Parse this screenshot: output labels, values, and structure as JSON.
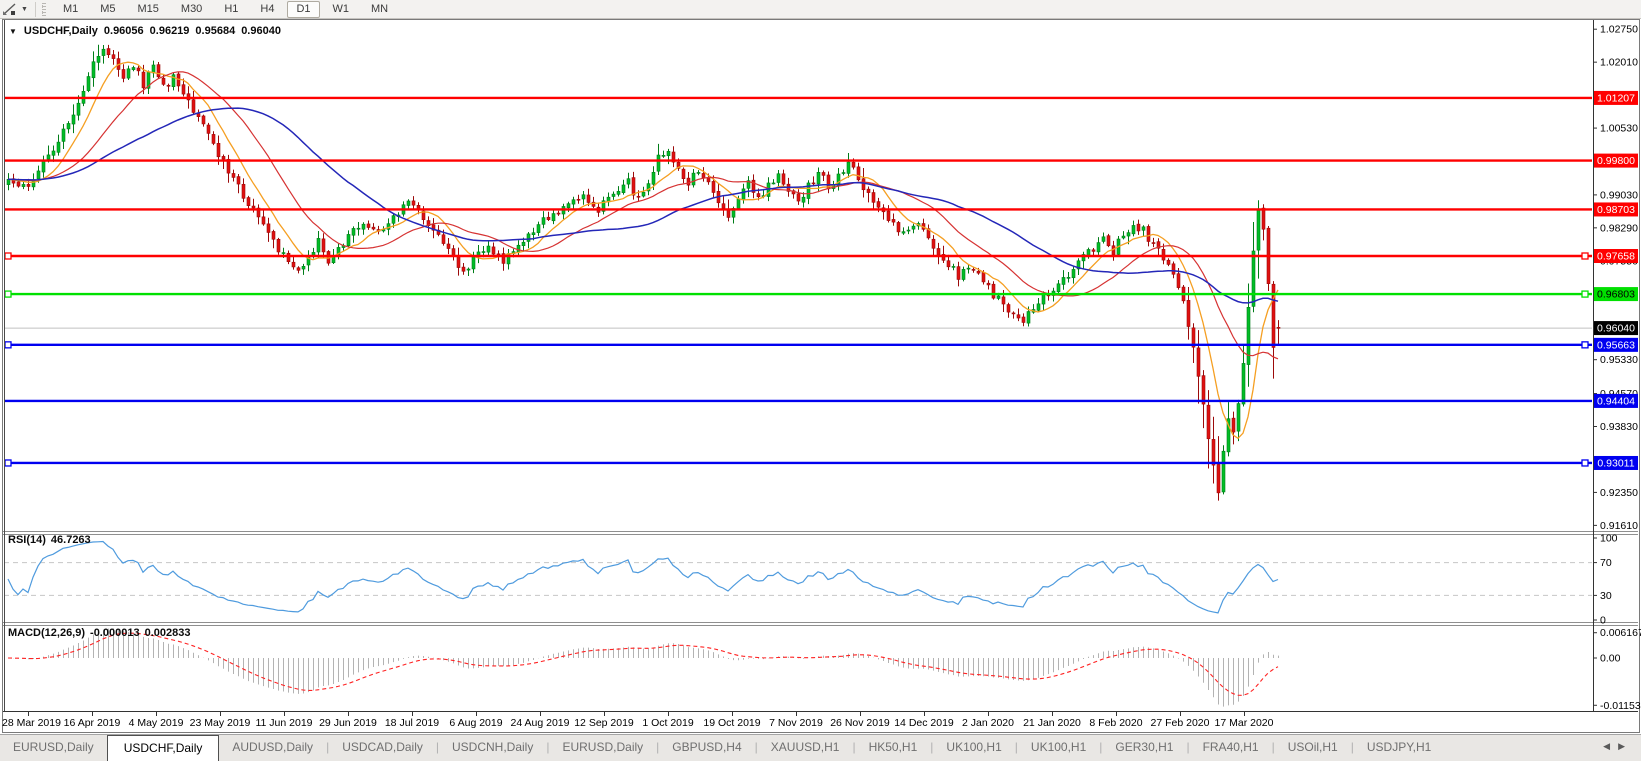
{
  "toolbar": {
    "tool_icon": "line-draw-cursor-icon",
    "timeframes": [
      {
        "label": "M1",
        "active": false
      },
      {
        "label": "M5",
        "active": false
      },
      {
        "label": "M15",
        "active": false
      },
      {
        "label": "M30",
        "active": false
      },
      {
        "label": "H1",
        "active": false
      },
      {
        "label": "H4",
        "active": false
      },
      {
        "label": "D1",
        "active": true
      },
      {
        "label": "W1",
        "active": false
      },
      {
        "label": "MN",
        "active": false
      }
    ]
  },
  "chart": {
    "title": "USDCHF,Daily",
    "open": "0.96056",
    "high": "0.96219",
    "low": "0.95684",
    "close": "0.96040",
    "price_ticks": [
      "1.02750",
      "1.02010",
      "1.00530",
      "0.99030",
      "0.98290",
      "0.97550",
      "0.95330",
      "0.94570",
      "0.93830",
      "0.92350",
      "0.91610"
    ],
    "hlines": [
      {
        "price": 1.01207,
        "label": "1.01207",
        "color": "#FF0000",
        "text_color": "#FFFFFF",
        "selected": false
      },
      {
        "price": 0.998,
        "label": "0.99800",
        "color": "#FF0000",
        "text_color": "#FFFFFF",
        "selected": false
      },
      {
        "price": 0.98703,
        "label": "0.98703",
        "color": "#FF0000",
        "text_color": "#FFFFFF",
        "selected": false
      },
      {
        "price": 0.97658,
        "label": "0.97658",
        "color": "#FF0000",
        "text_color": "#FFFFFF",
        "selected": true
      },
      {
        "price": 0.96803,
        "label": "0.96803",
        "color": "#00E000",
        "text_color": "#000000",
        "selected": true
      },
      {
        "price": 0.95663,
        "label": "0.95663",
        "color": "#0000F0",
        "text_color": "#FFFFFF",
        "selected": true
      },
      {
        "price": 0.94404,
        "label": "0.94404",
        "color": "#0000F0",
        "text_color": "#FFFFFF",
        "selected": false
      },
      {
        "price": 0.93011,
        "label": "0.93011",
        "color": "#0000F0",
        "text_color": "#FFFFFF",
        "selected": true
      }
    ],
    "current_price": {
      "value": 0.9604,
      "label": "0.96040",
      "line_color": "#C0C0C0",
      "label_bg": "#000000",
      "label_text": "#FFFFFF"
    },
    "date_labels": [
      "28 Mar 2019",
      "16 Apr 2019",
      "4 May 2019",
      "23 May 2019",
      "11 Jun 2019",
      "29 Jun 2019",
      "18 Jul 2019",
      "6 Aug 2019",
      "24 Aug 2019",
      "12 Sep 2019",
      "1 Oct 2019",
      "19 Oct 2019",
      "7 Nov 2019",
      "26 Nov 2019",
      "14 Dec 2019",
      "2 Jan 2020",
      "21 Jan 2020",
      "8 Feb 2020",
      "27 Feb 2020",
      "17 Mar 2020"
    ]
  },
  "indicators": {
    "rsi": {
      "name": "RSI(14)",
      "value": "46.7263",
      "ticks": [
        "100",
        "70",
        "30",
        "0"
      ],
      "levels": [
        70,
        30
      ],
      "line_color": "#4F9BDE"
    },
    "macd": {
      "name": "MACD(12,26,9)",
      "main_value": "-0.000013",
      "signal_value": "0.002833",
      "ticks": [
        "0.006167",
        "0.00",
        "-0.011531"
      ],
      "histogram_color": "#B3B3B3",
      "signal_color": "#FF2222"
    }
  },
  "chart_data": {
    "type": "candlestick",
    "symbol": "USDCHF",
    "timeframe": "Daily",
    "title": "USDCHF,Daily",
    "bars": 255,
    "price_range": {
      "min": 0.9161,
      "max": 1.0275
    },
    "first_date": "28 Mar 2019",
    "last_date": "17 Mar 2020",
    "last_ohlc": {
      "open": 0.96056,
      "high": 0.96219,
      "low": 0.95684,
      "close": 0.9604
    },
    "up_color": "#00BE26",
    "down_color": "#E01010",
    "close_keypoints": [
      [
        0,
        0.994
      ],
      [
        3,
        0.9918
      ],
      [
        6,
        0.9956
      ],
      [
        9,
        1.0002
      ],
      [
        12,
        1.0062
      ],
      [
        15,
        1.014
      ],
      [
        17,
        1.0192
      ],
      [
        19,
        1.0226
      ],
      [
        21,
        1.0206
      ],
      [
        23,
        1.0162
      ],
      [
        25,
        1.0196
      ],
      [
        27,
        1.0152
      ],
      [
        29,
        1.0186
      ],
      [
        31,
        1.0142
      ],
      [
        33,
        1.0166
      ],
      [
        35,
        1.0122
      ],
      [
        37,
        1.0096
      ],
      [
        40,
        1.0042
      ],
      [
        43,
        0.9976
      ],
      [
        46,
        0.9922
      ],
      [
        49,
        0.9866
      ],
      [
        52,
        0.9816
      ],
      [
        55,
        0.9766
      ],
      [
        58,
        0.9726
      ],
      [
        60,
        0.9762
      ],
      [
        62,
        0.9796
      ],
      [
        64,
        0.9752
      ],
      [
        66,
        0.9776
      ],
      [
        68,
        0.9812
      ],
      [
        71,
        0.9846
      ],
      [
        74,
        0.9818
      ],
      [
        77,
        0.9852
      ],
      [
        80,
        0.9882
      ],
      [
        83,
        0.9856
      ],
      [
        86,
        0.9816
      ],
      [
        88,
        0.9776
      ],
      [
        91,
        0.9722
      ],
      [
        93,
        0.9758
      ],
      [
        96,
        0.9784
      ],
      [
        99,
        0.9752
      ],
      [
        102,
        0.9792
      ],
      [
        105,
        0.9822
      ],
      [
        108,
        0.9852
      ],
      [
        112,
        0.9886
      ],
      [
        115,
        0.9906
      ],
      [
        118,
        0.9872
      ],
      [
        121,
        0.9902
      ],
      [
        124,
        0.9932
      ],
      [
        126,
        0.9892
      ],
      [
        128,
        0.9936
      ],
      [
        130,
        0.9986
      ],
      [
        132,
        1.0002
      ],
      [
        134,
        0.9956
      ],
      [
        136,
        0.9922
      ],
      [
        138,
        0.9962
      ],
      [
        140,
        0.9932
      ],
      [
        142,
        0.9892
      ],
      [
        144,
        0.9862
      ],
      [
        146,
        0.9896
      ],
      [
        148,
        0.9926
      ],
      [
        150,
        0.9892
      ],
      [
        152,
        0.9922
      ],
      [
        154,
        0.9946
      ],
      [
        156,
        0.9916
      ],
      [
        158,
        0.9886
      ],
      [
        160,
        0.9922
      ],
      [
        162,
        0.9952
      ],
      [
        164,
        0.9922
      ],
      [
        166,
        0.9946
      ],
      [
        168,
        0.9976
      ],
      [
        170,
        0.9942
      ],
      [
        172,
        0.9906
      ],
      [
        174,
        0.9872
      ],
      [
        176,
        0.9842
      ],
      [
        179,
        0.9822
      ],
      [
        182,
        0.9842
      ],
      [
        184,
        0.9806
      ],
      [
        186,
        0.9776
      ],
      [
        188,
        0.9746
      ],
      [
        190,
        0.9722
      ],
      [
        193,
        0.9742
      ],
      [
        195,
        0.9706
      ],
      [
        197,
        0.9678
      ],
      [
        199,
        0.9656
      ],
      [
        201,
        0.9636
      ],
      [
        203,
        0.9616
      ],
      [
        205,
        0.9652
      ],
      [
        207,
        0.9672
      ],
      [
        209,
        0.9692
      ],
      [
        211,
        0.9712
      ],
      [
        213,
        0.9736
      ],
      [
        215,
        0.9762
      ],
      [
        217,
        0.9782
      ],
      [
        219,
        0.9802
      ],
      [
        221,
        0.9778
      ],
      [
        223,
        0.9812
      ],
      [
        225,
        0.9838
      ],
      [
        227,
        0.9822
      ],
      [
        229,
        0.9792
      ],
      [
        231,
        0.9756
      ],
      [
        233,
        0.9722
      ],
      [
        234,
        0.9702
      ],
      [
        235,
        0.9662
      ],
      [
        236,
        0.9612
      ],
      [
        237,
        0.9562
      ],
      [
        238,
        0.9502
      ],
      [
        239,
        0.9432
      ],
      [
        240,
        0.9362
      ],
      [
        241,
        0.9292
      ],
      [
        242,
        0.9232
      ],
      [
        243,
        0.9322
      ],
      [
        244,
        0.9402
      ],
      [
        245,
        0.9362
      ],
      [
        246,
        0.9442
      ],
      [
        247,
        0.9532
      ],
      [
        248,
        0.9652
      ],
      [
        249,
        0.9782
      ],
      [
        250,
        0.9872
      ],
      [
        251,
        0.9822
      ],
      [
        252,
        0.9702
      ],
      [
        253,
        0.9562
      ],
      [
        254,
        0.9604
      ]
    ],
    "moving_averages": [
      {
        "period": 8,
        "color": "#F59F22",
        "width": 1.3
      },
      {
        "period": 20,
        "color": "#D63333",
        "width": 1.2
      },
      {
        "period": 42,
        "color": "#2427B8",
        "width": 1.5
      }
    ],
    "levels": {
      "resistance_red": [
        1.01207,
        0.998,
        0.98703,
        0.97658
      ],
      "pivot_green": 0.96803,
      "support_blue": [
        0.95663,
        0.94404,
        0.93011
      ],
      "current": 0.9604
    },
    "rsi_current": 46.7263,
    "macd_current": {
      "main": -1.3e-05,
      "signal": 0.002833,
      "scale_max": 0.006167,
      "scale_min": -0.011531
    }
  },
  "tabs": [
    {
      "label": "EURUSD,Daily",
      "active": false
    },
    {
      "label": "USDCHF,Daily",
      "active": true
    },
    {
      "label": "AUDUSD,Daily",
      "active": false
    },
    {
      "label": "USDCAD,Daily",
      "active": false
    },
    {
      "label": "USDCNH,Daily",
      "active": false
    },
    {
      "label": "EURUSD,Daily",
      "active": false
    },
    {
      "label": "GBPUSD,H4",
      "active": false
    },
    {
      "label": "XAUUSD,H1",
      "active": false
    },
    {
      "label": "HK50,H1",
      "active": false
    },
    {
      "label": "UK100,H1",
      "active": false
    },
    {
      "label": "UK100,H1",
      "active": false
    },
    {
      "label": "GER30,H1",
      "active": false
    },
    {
      "label": "FRA40,H1",
      "active": false
    },
    {
      "label": "USOil,H1",
      "active": false
    },
    {
      "label": "USDJPY,H1",
      "active": false
    }
  ],
  "tab_scroll": {
    "left": "◀",
    "right": "▶"
  }
}
